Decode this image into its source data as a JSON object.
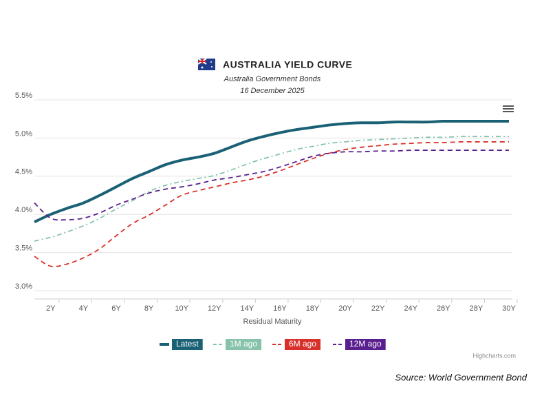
{
  "chart_data": {
    "type": "line",
    "title": "AUSTRALIA YIELD CURVE",
    "subtitle": "Australia Government Bonds",
    "date": "16 December 2025",
    "x_label": "Residual Maturity",
    "credits": "Highcharts.com",
    "source": "Source: World Government Bond",
    "x": [
      1,
      2,
      3,
      4,
      5,
      6,
      7,
      8,
      9,
      10,
      11,
      12,
      13,
      14,
      15,
      16,
      17,
      18,
      19,
      20,
      21,
      22,
      23,
      24,
      25,
      26,
      27,
      28,
      29,
      30
    ],
    "xlim": [
      1,
      30
    ],
    "xticks": [
      {
        "value": 2,
        "label": "2Y"
      },
      {
        "value": 4,
        "label": "4Y"
      },
      {
        "value": 6,
        "label": "6Y"
      },
      {
        "value": 8,
        "label": "8Y"
      },
      {
        "value": 10,
        "label": "10Y"
      },
      {
        "value": 12,
        "label": "12Y"
      },
      {
        "value": 14,
        "label": "14Y"
      },
      {
        "value": 16,
        "label": "16Y"
      },
      {
        "value": 18,
        "label": "18Y"
      },
      {
        "value": 20,
        "label": "20Y"
      },
      {
        "value": 22,
        "label": "22Y"
      },
      {
        "value": 24,
        "label": "24Y"
      },
      {
        "value": 26,
        "label": "26Y"
      },
      {
        "value": 28,
        "label": "28Y"
      },
      {
        "value": 30,
        "label": "30Y"
      }
    ],
    "ylim": [
      3.0,
      5.5
    ],
    "yticks": [
      {
        "value": 3.0,
        "label": "3.0%"
      },
      {
        "value": 3.5,
        "label": "3.5%"
      },
      {
        "value": 4.0,
        "label": "4.0%"
      },
      {
        "value": 4.5,
        "label": "4.5%"
      },
      {
        "value": 5.0,
        "label": "5.0%"
      },
      {
        "value": 5.5,
        "label": "5.5%"
      }
    ],
    "grid": true,
    "series": [
      {
        "name": "Latest",
        "color": "#1b6175",
        "dash": "solid",
        "values": [
          3.9,
          4.0,
          4.08,
          4.15,
          4.25,
          4.36,
          4.47,
          4.56,
          4.65,
          4.71,
          4.75,
          4.8,
          4.88,
          4.96,
          5.02,
          5.07,
          5.11,
          5.14,
          5.17,
          5.19,
          5.2,
          5.2,
          5.21,
          5.21,
          5.21,
          5.22,
          5.22,
          5.22,
          5.22,
          5.22
        ]
      },
      {
        "name": "1M ago",
        "color": "#86c3aa",
        "dash": "dashdot",
        "values": [
          3.65,
          3.7,
          3.77,
          3.85,
          3.95,
          4.07,
          4.18,
          4.3,
          4.38,
          4.43,
          4.47,
          4.51,
          4.58,
          4.66,
          4.73,
          4.79,
          4.85,
          4.89,
          4.93,
          4.95,
          4.97,
          4.98,
          4.99,
          5.0,
          5.01,
          5.01,
          5.02,
          5.02,
          5.02,
          5.02
        ]
      },
      {
        "name": "6M ago",
        "color": "#d8302a",
        "dash": "dash",
        "values": [
          3.45,
          3.32,
          3.35,
          3.43,
          3.55,
          3.72,
          3.88,
          3.99,
          4.12,
          4.25,
          4.31,
          4.36,
          4.41,
          4.45,
          4.5,
          4.57,
          4.65,
          4.73,
          4.8,
          4.85,
          4.88,
          4.9,
          4.92,
          4.93,
          4.94,
          4.94,
          4.95,
          4.95,
          4.95,
          4.95
        ]
      },
      {
        "name": "12M ago",
        "color": "#5a1f8e",
        "dash": "dash",
        "values": [
          4.15,
          3.95,
          3.93,
          3.95,
          4.02,
          4.12,
          4.2,
          4.28,
          4.33,
          4.36,
          4.4,
          4.45,
          4.48,
          4.52,
          4.56,
          4.62,
          4.69,
          4.76,
          4.8,
          4.82,
          4.82,
          4.83,
          4.83,
          4.84,
          4.84,
          4.84,
          4.84,
          4.84,
          4.84,
          4.84
        ]
      }
    ]
  }
}
